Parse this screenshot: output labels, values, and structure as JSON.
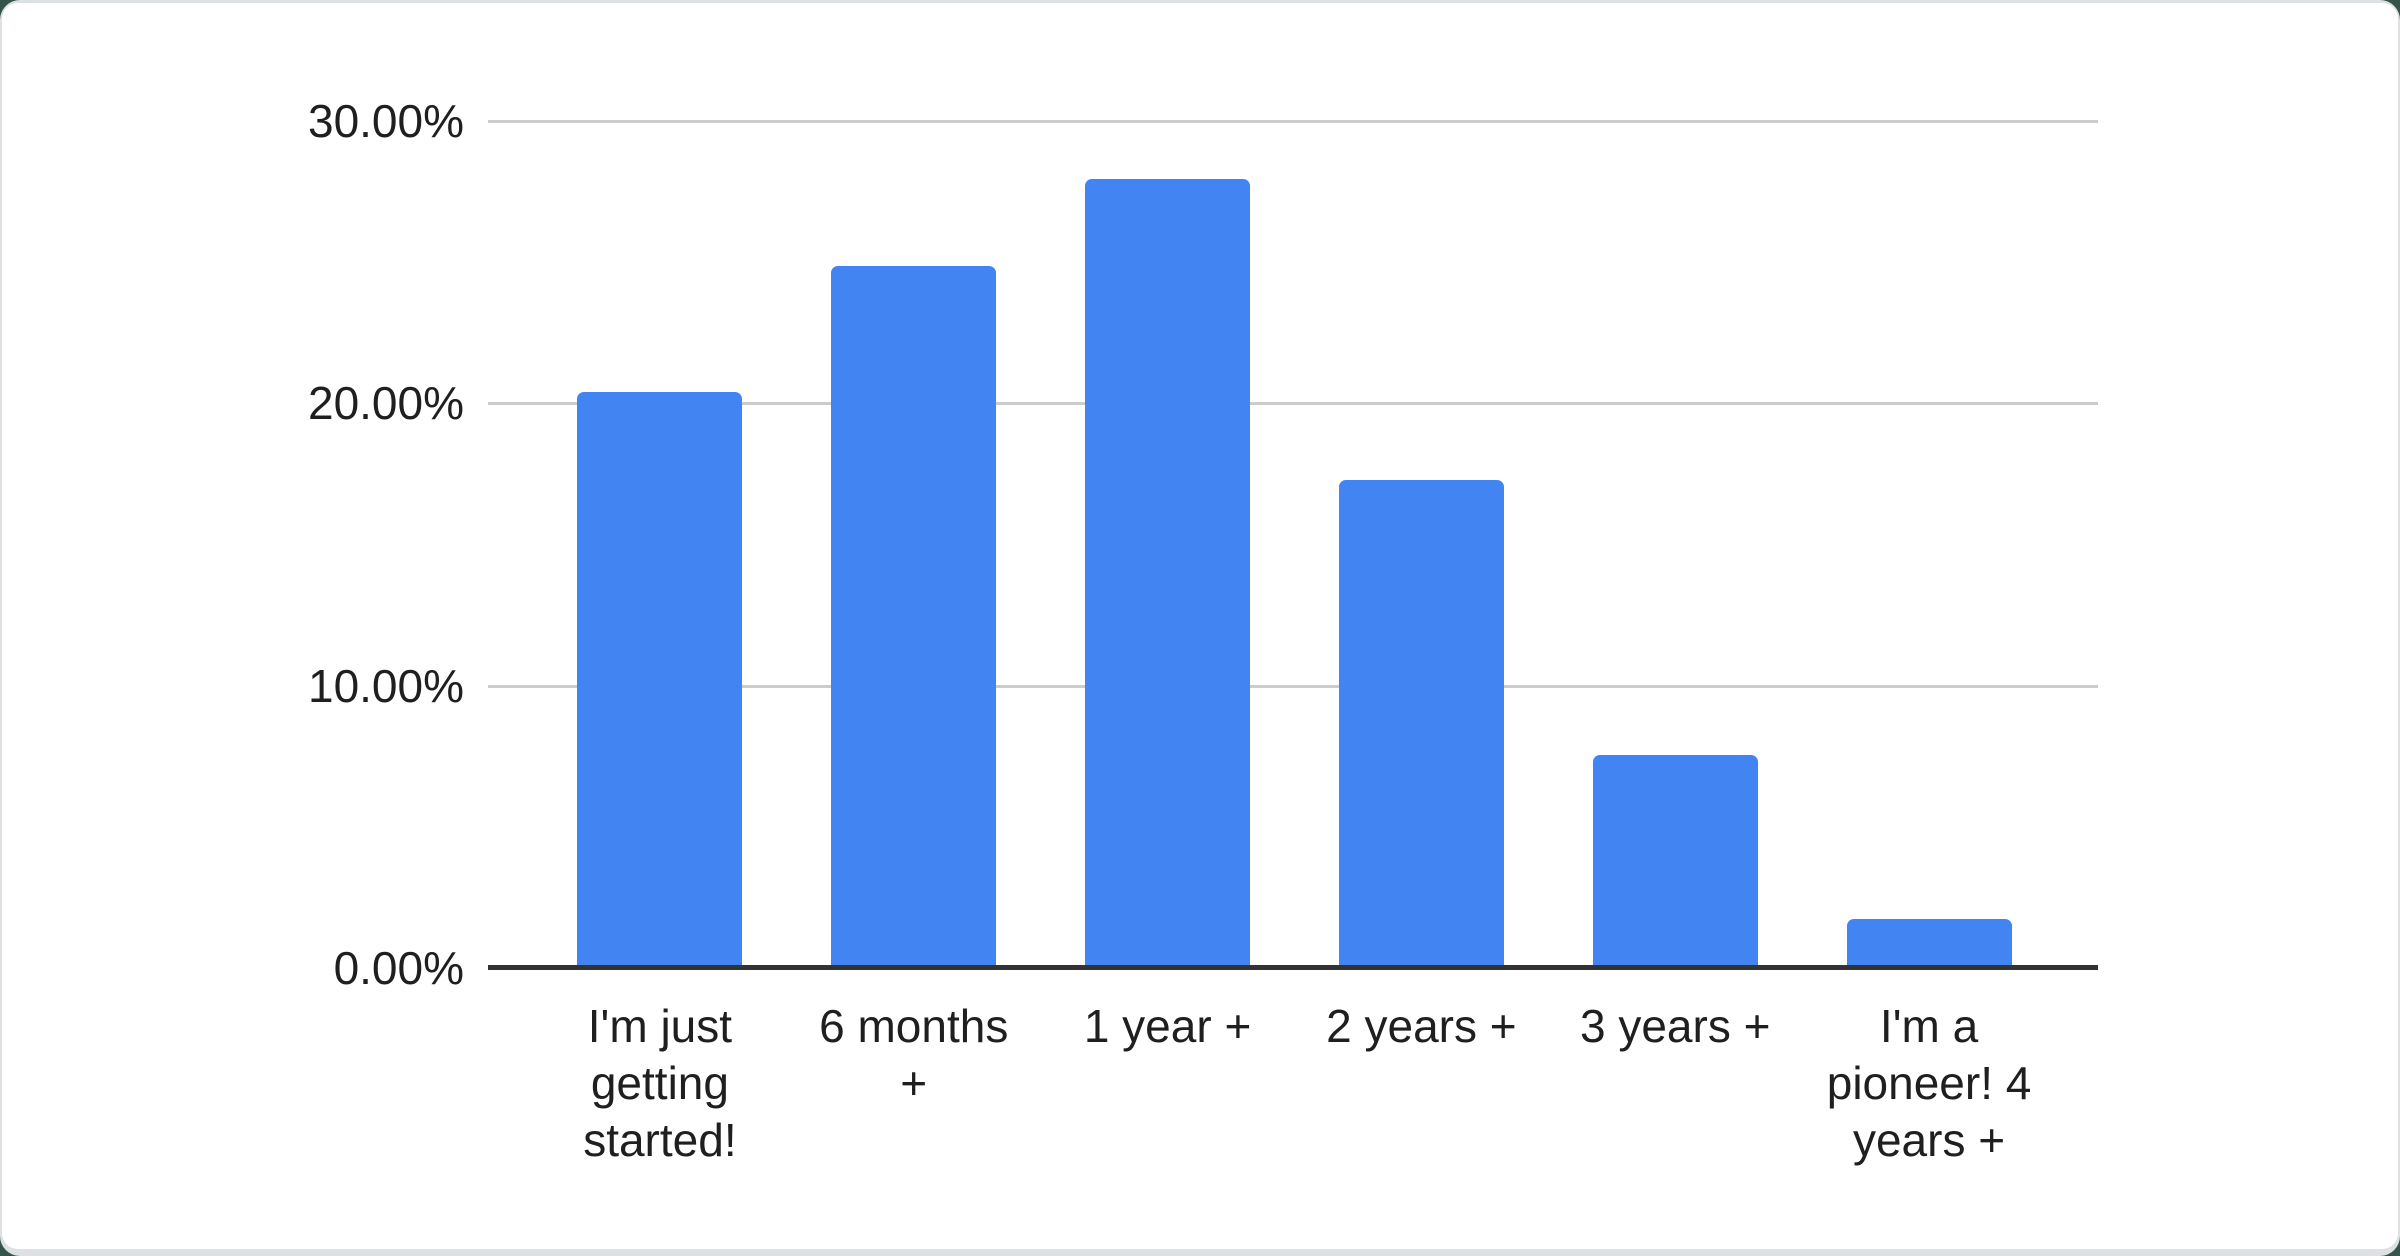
{
  "chart_data": {
    "type": "bar",
    "title": "",
    "xlabel": "",
    "ylabel": "",
    "categories": [
      "I'm just getting started!",
      "6 months +",
      "1 year +",
      "2 years +",
      "3 years +",
      "I'm a pioneer! 4 years +"
    ],
    "values": [
      20.4,
      24.85,
      27.95,
      17.3,
      7.55,
      1.75
    ],
    "ylim": [
      0,
      30
    ],
    "grid": true,
    "legend": "none",
    "y_ticks": [
      {
        "label": "30.00%",
        "value": 30
      },
      {
        "label": "20.00%",
        "value": 20
      },
      {
        "label": "10.00%",
        "value": 10
      },
      {
        "label": "0.00%",
        "value": 0
      }
    ],
    "bar_color": "#4384f3",
    "gridline_color": "#cccccc",
    "axis_line_color": "#333333",
    "label_color": "#1f1f1f",
    "card_background": "#ffffff"
  }
}
